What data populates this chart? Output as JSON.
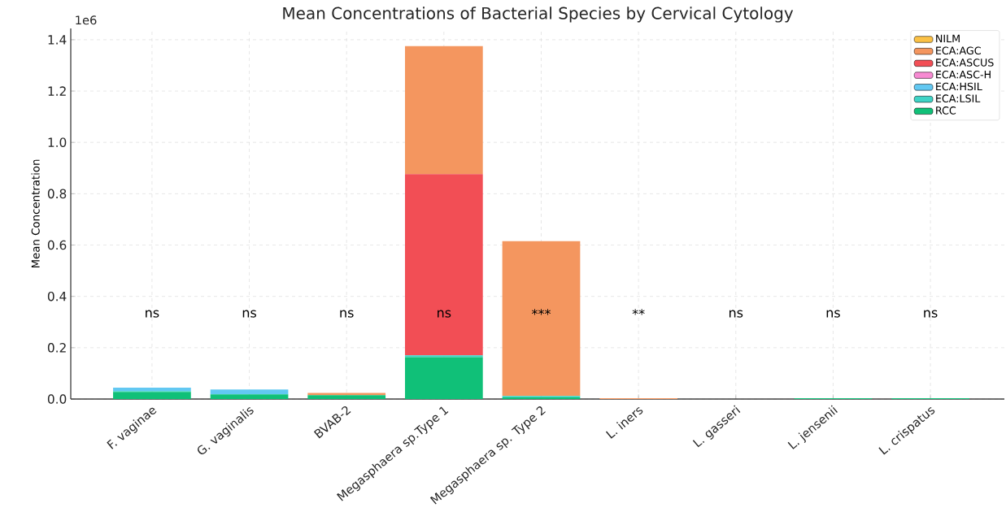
{
  "chart_data": {
    "type": "bar",
    "stacked": true,
    "title": "Mean Concentrations of Bacterial Species by Cervical Cytology",
    "ylabel": "Mean Concentration",
    "categories": [
      "F. vaginae",
      "G. vaginalis",
      "BVAB-2",
      "Megasphaera sp.Type 1",
      "Megasphaera sp. Type 2",
      "L. iners",
      "L. gasseri",
      "L. jensenii",
      "L. crispatus"
    ],
    "series": [
      {
        "name": "RCC",
        "color": "#10c078",
        "values": [
          0.028,
          0.018,
          0.015,
          0.163,
          0.006,
          0,
          0,
          0.003,
          0.003
        ]
      },
      {
        "name": "ECA:LSIL",
        "color": "#3fd4c6",
        "values": [
          0.003,
          0,
          0,
          0.007,
          0.006,
          0,
          0,
          0,
          0
        ]
      },
      {
        "name": "ECA:HSIL",
        "color": "#62c8f2",
        "values": [
          0.013,
          0.019,
          0,
          0,
          0,
          0,
          0,
          0,
          0
        ]
      },
      {
        "name": "ECA:ASC-H",
        "color": "#f78ad2",
        "values": [
          0,
          0,
          0,
          0,
          0,
          0,
          0,
          0,
          0
        ]
      },
      {
        "name": "ECA:ASCUS",
        "color": "#f24e55",
        "values": [
          0,
          0,
          0,
          0.706,
          0,
          0,
          0,
          0,
          0
        ]
      },
      {
        "name": "ECA:AGC",
        "color": "#f4965f",
        "values": [
          0,
          0,
          0.009,
          0.499,
          0.603,
          0.003,
          0,
          0,
          0
        ]
      },
      {
        "name": "NILM",
        "color": "#fbc145",
        "values": [
          0,
          0,
          0,
          0,
          0,
          0,
          0,
          0,
          0
        ]
      }
    ],
    "ylim": [
      0,
      1.444
    ],
    "yticks": [
      {
        "value": 0,
        "label": "0.0"
      },
      0.2,
      0.4,
      0.6,
      0.8,
      {
        "value": 1,
        "label": "1.0"
      },
      1.2,
      1.4
    ],
    "grid": true,
    "legend": "top right",
    "annotations": [
      "1e6",
      "ns",
      "ns",
      "ns",
      "ns",
      "***",
      "**",
      "ns",
      "ns",
      "ns"
    ]
  }
}
